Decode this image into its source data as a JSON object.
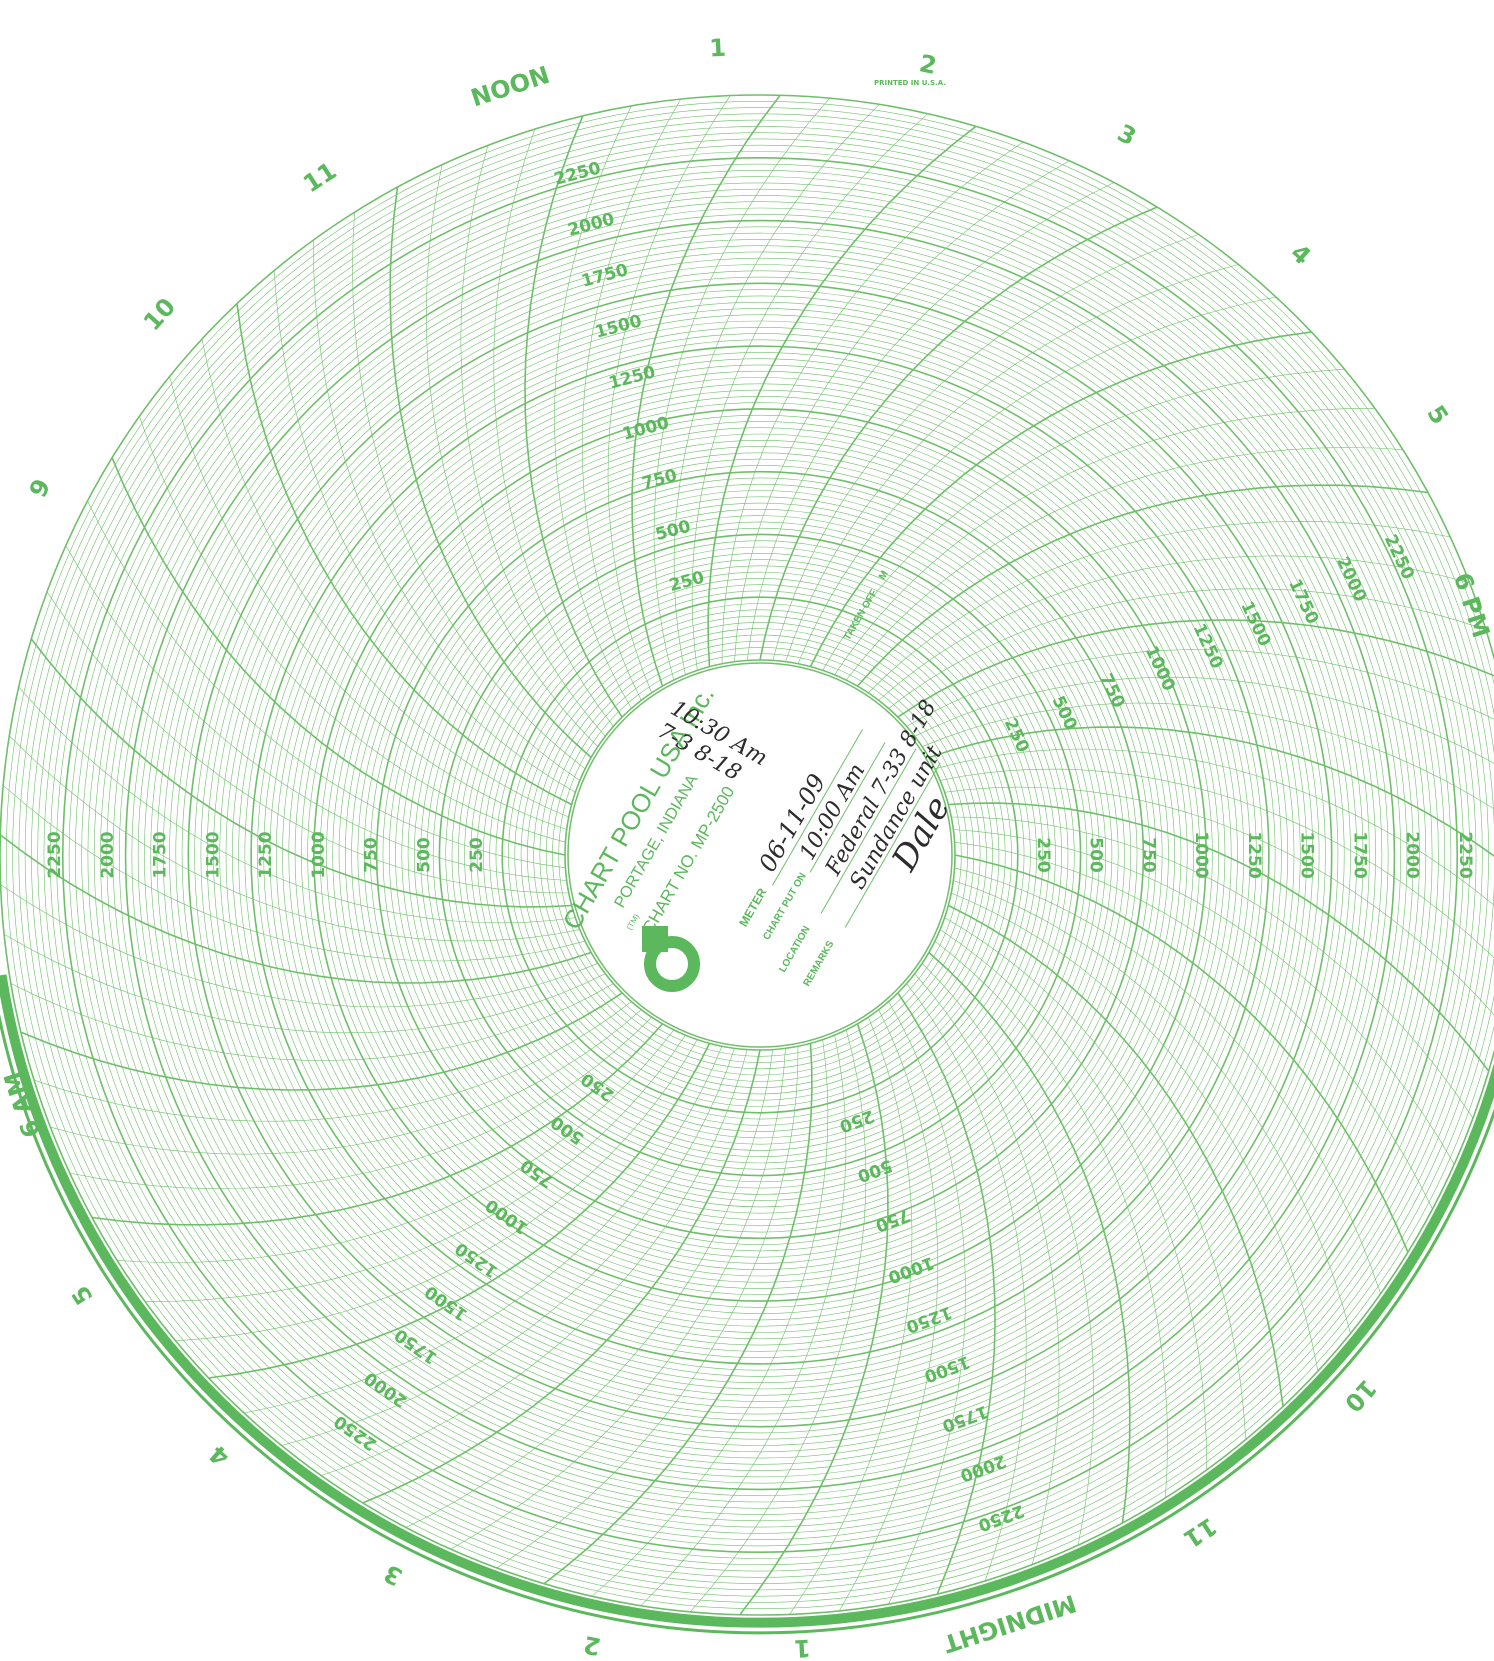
{
  "chart": {
    "hour_labels": [
      {
        "text": "NOON",
        "hour": 12
      },
      {
        "text": "1",
        "hour": 13
      },
      {
        "text": "2",
        "hour": 14
      },
      {
        "text": "3",
        "hour": 15
      },
      {
        "text": "4",
        "hour": 16
      },
      {
        "text": "5",
        "hour": 17
      },
      {
        "text": "6 PM",
        "hour": 18
      },
      {
        "text": "10",
        "hour": 22
      },
      {
        "text": "11",
        "hour": 23
      },
      {
        "text": "MIDNIGHT",
        "hour": 24
      },
      {
        "text": "1",
        "hour": 1
      },
      {
        "text": "2",
        "hour": 2
      },
      {
        "text": "3",
        "hour": 3
      },
      {
        "text": "4",
        "hour": 4
      },
      {
        "text": "5",
        "hour": 5
      },
      {
        "text": "6 AM",
        "hour": 6
      },
      {
        "text": "9",
        "hour": 9
      },
      {
        "text": "10",
        "hour": 10
      },
      {
        "text": "11",
        "hour": 11
      }
    ],
    "scale_values": [
      "250",
      "500",
      "750",
      "1000",
      "1250",
      "1500",
      "1750",
      "2000",
      "2250"
    ],
    "printed_mark": "PRINTED IN U.S.A.",
    "accent_color": "#5cb85c"
  },
  "center": {
    "company": "CHART POOL USA Inc.",
    "city": "PORTAGE, INDIANA",
    "chart_no": "CHART NO. MP-2500",
    "tm": "(TM)",
    "fields": {
      "meter_label": "METER",
      "put_on_label": "CHART PUT ON",
      "taken_off_label": "TAKEN OFF",
      "location_label": "LOCATION",
      "remarks_label": "REMARKS",
      "m_label": "M"
    },
    "handwriting": {
      "meter_date": "06-11-09",
      "put_on_time": "10:00 Am",
      "taken_off_time": "10:30 Am",
      "taken_off_date": "7-3 8-18",
      "location": "Federal 7-33 8-18",
      "remarks": "Sundance unit",
      "signature": "Dale"
    }
  }
}
